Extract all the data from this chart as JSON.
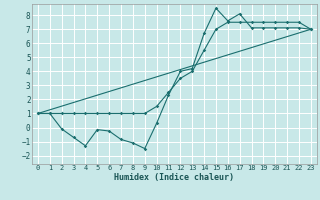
{
  "xlabel": "Humidex (Indice chaleur)",
  "background_color": "#c8e8e8",
  "grid_color": "#ffffff",
  "line_color": "#1a6e6e",
  "xlim": [
    -0.5,
    23.5
  ],
  "ylim": [
    -2.6,
    8.8
  ],
  "xticks": [
    0,
    1,
    2,
    3,
    4,
    5,
    6,
    7,
    8,
    9,
    10,
    11,
    12,
    13,
    14,
    15,
    16,
    17,
    18,
    19,
    20,
    21,
    22,
    23
  ],
  "yticks": [
    -2,
    -1,
    0,
    1,
    2,
    3,
    4,
    5,
    6,
    7,
    8
  ],
  "series1_x": [
    0,
    1,
    2,
    3,
    4,
    5,
    6,
    7,
    8,
    9,
    10,
    11,
    12,
    13,
    14,
    15,
    16,
    17,
    18,
    19,
    20,
    21,
    22,
    23
  ],
  "series1_y": [
    1.0,
    1.0,
    -0.1,
    -0.7,
    -1.3,
    -0.15,
    -0.25,
    -0.85,
    -1.1,
    -1.5,
    0.3,
    2.3,
    4.0,
    4.2,
    6.7,
    8.5,
    7.6,
    8.1,
    7.1,
    7.1,
    7.1,
    7.1,
    7.1,
    7.0
  ],
  "series2_x": [
    0,
    1,
    2,
    3,
    4,
    5,
    6,
    7,
    8,
    9,
    10,
    11,
    12,
    13,
    14,
    15,
    16,
    17,
    18,
    19,
    20,
    21,
    22,
    23
  ],
  "series2_y": [
    1.0,
    1.0,
    1.0,
    1.0,
    1.0,
    1.0,
    1.0,
    1.0,
    1.0,
    1.0,
    1.5,
    2.5,
    3.5,
    4.0,
    5.5,
    7.0,
    7.5,
    7.5,
    7.5,
    7.5,
    7.5,
    7.5,
    7.5,
    7.0
  ],
  "series3_x": [
    0,
    23
  ],
  "series3_y": [
    1.0,
    7.0
  ]
}
